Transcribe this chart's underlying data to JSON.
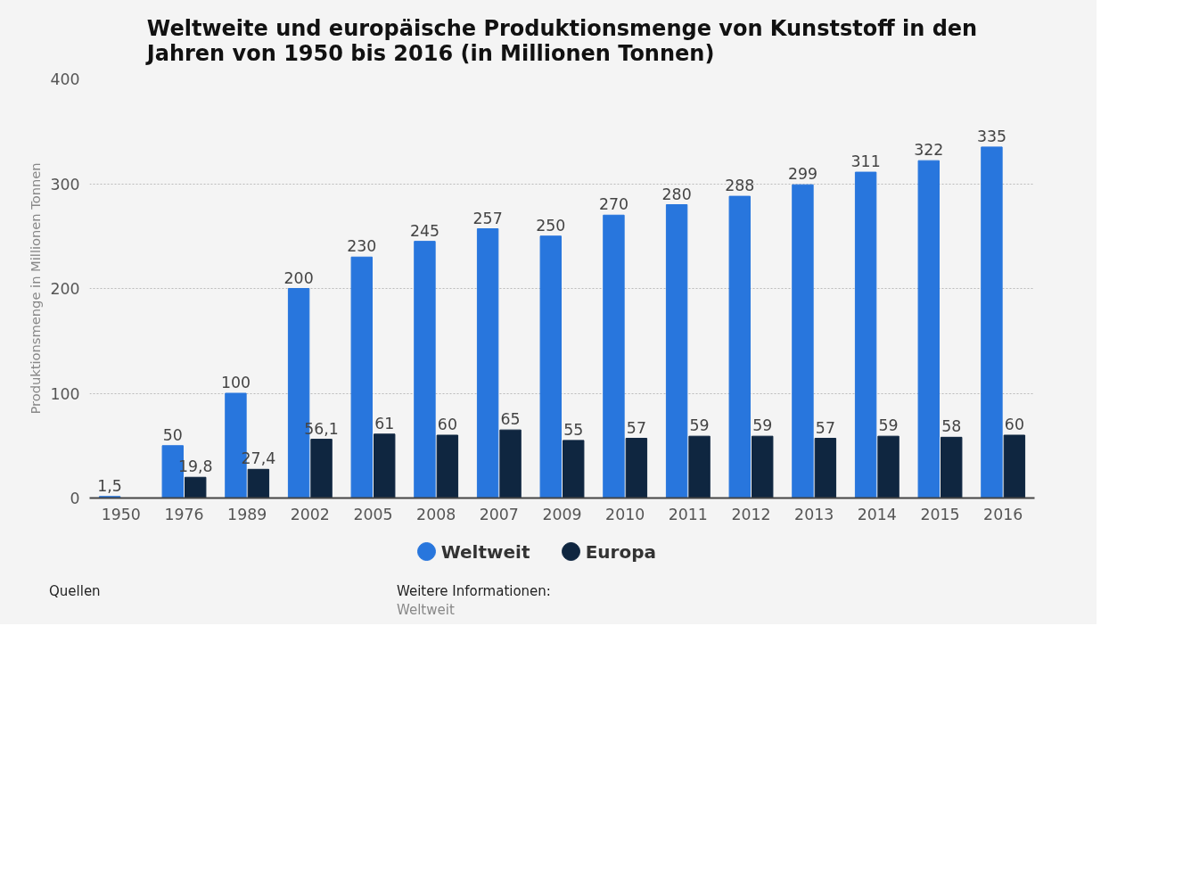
{
  "chart_data": {
    "type": "bar",
    "title": "Weltweite und europäische Produktionsmenge von Kunststoff in den Jahren von 1950 bis 2016 (in Millionen Tonnen)",
    "ylabel": "Produktionsmenge in Millionen Tonnen",
    "categories": [
      "1950",
      "1976",
      "1989",
      "2002",
      "2005",
      "2008",
      "2007",
      "2009",
      "2010",
      "2011",
      "2012",
      "2013",
      "2014",
      "2015",
      "2016"
    ],
    "series": [
      {
        "name": "Weltweit",
        "color": "#2876dd",
        "values": [
          1.5,
          50,
          100,
          200,
          230,
          245,
          257,
          250,
          270,
          280,
          288,
          299,
          311,
          322,
          335
        ],
        "value_labels": [
          "1,5",
          "50",
          "100",
          "200",
          "230",
          "245",
          "257",
          "250",
          "270",
          "280",
          "288",
          "299",
          "311",
          "322",
          "335"
        ]
      },
      {
        "name": "Europa",
        "color": "#0f2640",
        "values": [
          null,
          19.8,
          27.4,
          56.1,
          61,
          60,
          65,
          55,
          57,
          59,
          59,
          57,
          59,
          58,
          60
        ],
        "value_labels": [
          null,
          "19,8",
          "27,4",
          "56,1",
          "61",
          "60",
          "65",
          "55",
          "57",
          "59",
          "59",
          "57",
          "59",
          "58",
          "60"
        ]
      }
    ],
    "ylim": [
      0,
      400
    ],
    "yticks": [
      0,
      100,
      200,
      300,
      400
    ],
    "grid": "y",
    "legend": "bottom",
    "annotations": [
      "Quellen",
      "Weitere Informationen:",
      "Weltweit"
    ]
  }
}
